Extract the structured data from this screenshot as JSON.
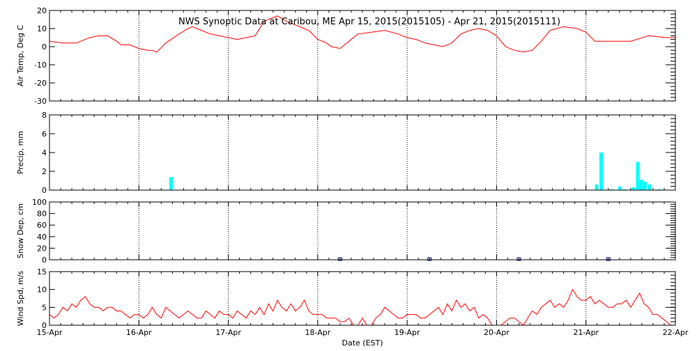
{
  "colors": {
    "air_temp": "#ff0000",
    "precip": "#00ffff",
    "snow": "#000080",
    "wind": "#ff0000",
    "axes": "#000000"
  },
  "chart_data": {
    "title": "NWS Synoptic Data at Caribou, ME   Apr 15, 2015(2015105) - Apr 21, 2015(2015111)",
    "x_axis": {
      "label": "Date (EST)",
      "ticks": [
        "15-Apr",
        "16-Apr",
        "17-Apr",
        "18-Apr",
        "19-Apr",
        "20-Apr",
        "21-Apr",
        "22-Apr"
      ],
      "range_days": [
        0,
        7
      ],
      "grid": "vertical dotted"
    },
    "panels": [
      {
        "id": "air_temp",
        "type": "line",
        "ylabel": "Air Temp, Deg C",
        "ylim": [
          -30,
          20
        ],
        "yticks": [
          "20",
          "10",
          "0",
          "-10",
          "-20",
          "-30"
        ],
        "ytick_values": [
          20,
          10,
          0,
          -10,
          -20,
          -30
        ],
        "x": [
          0,
          0.15,
          0.3,
          0.45,
          0.55,
          0.65,
          0.75,
          0.8,
          0.9,
          1.0,
          1.1,
          1.15,
          1.2,
          1.3,
          1.45,
          1.55,
          1.6,
          1.7,
          1.8,
          1.9,
          2.0,
          2.1,
          2.2,
          2.3,
          2.4,
          2.5,
          2.55,
          2.65,
          2.75,
          2.9,
          3.0,
          3.1,
          3.15,
          3.25,
          3.35,
          3.45,
          3.6,
          3.75,
          3.9,
          4.0,
          4.1,
          4.2,
          4.3,
          4.4,
          4.5,
          4.6,
          4.7,
          4.8,
          4.9,
          5.0,
          5.1,
          5.2,
          5.3,
          5.4,
          5.5,
          5.6,
          5.75,
          5.9,
          6.0,
          6.1,
          6.3,
          6.5,
          6.7,
          6.9,
          7.0
        ],
        "y": [
          3,
          2,
          2,
          5,
          6,
          6,
          3,
          1,
          1,
          -1,
          -2,
          -2,
          -3,
          2,
          7,
          10,
          11,
          9,
          7,
          6,
          5,
          4,
          5,
          6,
          14,
          16,
          17,
          14,
          12,
          9,
          4,
          2,
          0,
          -1,
          3,
          7,
          8,
          9,
          7,
          5,
          4,
          2,
          1,
          0,
          2,
          7,
          9,
          10,
          9,
          6,
          0,
          -2,
          -3,
          -2,
          3,
          9,
          11,
          10,
          8,
          3,
          3,
          3,
          6,
          5,
          5
        ]
      },
      {
        "id": "precip",
        "type": "bar",
        "ylabel": "Precip, mm",
        "ylim": [
          0,
          8
        ],
        "yticks": [
          "8",
          "6",
          "4",
          "2",
          "0"
        ],
        "ytick_values": [
          8,
          6,
          4,
          2,
          0
        ],
        "bars": [
          {
            "x": 1.36,
            "value": 1.4
          },
          {
            "x": 6.12,
            "value": 0.6
          },
          {
            "x": 6.17,
            "value": 4.0
          },
          {
            "x": 6.29,
            "value": 0.1
          },
          {
            "x": 6.38,
            "value": 0.4
          },
          {
            "x": 6.43,
            "value": 0.1
          },
          {
            "x": 6.53,
            "value": 0.3
          },
          {
            "x": 6.58,
            "value": 3.0
          },
          {
            "x": 6.62,
            "value": 1.1
          },
          {
            "x": 6.66,
            "value": 0.9
          },
          {
            "x": 6.71,
            "value": 0.6
          },
          {
            "x": 6.82,
            "value": 0.1
          }
        ]
      },
      {
        "id": "snow_depth",
        "type": "scatter",
        "ylabel": "Snow Dep, cm",
        "ylim": [
          0,
          100
        ],
        "yticks": [
          "100",
          "80",
          "60",
          "40",
          "20",
          "0"
        ],
        "ytick_values": [
          100,
          80,
          60,
          40,
          20,
          0
        ],
        "points": [
          {
            "x": 3.25,
            "value": 0
          },
          {
            "x": 4.25,
            "value": 0
          },
          {
            "x": 5.25,
            "value": 0
          },
          {
            "x": 6.25,
            "value": 0
          }
        ]
      },
      {
        "id": "wind_speed",
        "type": "line",
        "ylabel": "Wind Spd, m/s",
        "ylim": [
          0,
          15
        ],
        "yticks": [
          "15",
          "10",
          "5",
          "0"
        ],
        "ytick_values": [
          15,
          10,
          5,
          0
        ],
        "x": [
          0,
          0.05,
          0.1,
          0.15,
          0.2,
          0.25,
          0.3,
          0.35,
          0.4,
          0.45,
          0.5,
          0.55,
          0.6,
          0.65,
          0.7,
          0.75,
          0.8,
          0.85,
          0.9,
          0.95,
          1.0,
          1.05,
          1.1,
          1.15,
          1.2,
          1.25,
          1.3,
          1.35,
          1.4,
          1.45,
          1.5,
          1.55,
          1.6,
          1.65,
          1.7,
          1.75,
          1.8,
          1.85,
          1.9,
          1.95,
          2.0,
          2.05,
          2.1,
          2.15,
          2.2,
          2.25,
          2.3,
          2.35,
          2.4,
          2.45,
          2.5,
          2.55,
          2.6,
          2.65,
          2.7,
          2.75,
          2.8,
          2.85,
          2.9,
          2.95,
          3.0,
          3.05,
          3.1,
          3.15,
          3.2,
          3.25,
          3.3,
          3.35,
          3.4,
          3.45,
          3.5,
          3.55,
          3.6,
          3.65,
          3.7,
          3.75,
          3.8,
          3.85,
          3.9,
          3.95,
          4.0,
          4.05,
          4.1,
          4.15,
          4.2,
          4.25,
          4.3,
          4.35,
          4.4,
          4.45,
          4.5,
          4.55,
          4.6,
          4.65,
          4.7,
          4.75,
          4.8,
          4.85,
          4.9,
          4.95,
          5.0,
          5.05,
          5.1,
          5.15,
          5.2,
          5.25,
          5.3,
          5.35,
          5.4,
          5.45,
          5.5,
          5.55,
          5.6,
          5.65,
          5.7,
          5.75,
          5.8,
          5.85,
          5.9,
          5.95,
          6.0,
          6.05,
          6.1,
          6.15,
          6.2,
          6.25,
          6.3,
          6.35,
          6.4,
          6.45,
          6.5,
          6.55,
          6.6,
          6.65,
          6.7,
          6.75,
          6.8,
          6.85,
          6.9,
          6.95,
          7.0
        ],
        "y": [
          3,
          2,
          3,
          5,
          4,
          6,
          5,
          7,
          8,
          6,
          5,
          5,
          4,
          5,
          5,
          4,
          4,
          3,
          2,
          3,
          3,
          2,
          3,
          5,
          3,
          2,
          5,
          4,
          3,
          2,
          3,
          4,
          3,
          2,
          2,
          4,
          3,
          2,
          4,
          3,
          3,
          2,
          4,
          3,
          2,
          4,
          3,
          5,
          3,
          6,
          4,
          7,
          5,
          4,
          6,
          4,
          5,
          7,
          4,
          3,
          3,
          3,
          2,
          2,
          2,
          1,
          1,
          2,
          0,
          0,
          2,
          0,
          0,
          2,
          3,
          5,
          4,
          3,
          2,
          2,
          3,
          3,
          3,
          2,
          2,
          3,
          4,
          5,
          3,
          6,
          4,
          7,
          5,
          6,
          4,
          5,
          2,
          3,
          2,
          0,
          0,
          0,
          1,
          2,
          2,
          1,
          0,
          2,
          4,
          3,
          5,
          6,
          7,
          5,
          6,
          5,
          7,
          10,
          8,
          7,
          7,
          8,
          6,
          7,
          6,
          5,
          5,
          6,
          6,
          7,
          5,
          7,
          9,
          6,
          5,
          3,
          3,
          2,
          1,
          0,
          0
        ]
      }
    ]
  }
}
